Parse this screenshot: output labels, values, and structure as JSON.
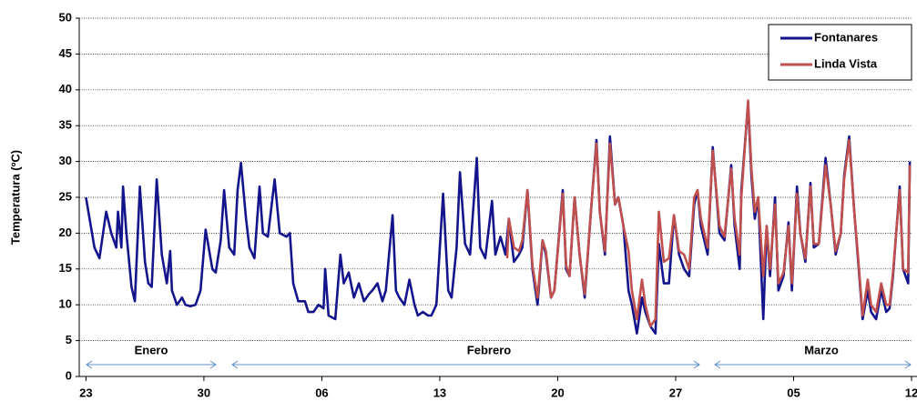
{
  "chart_data": {
    "type": "line",
    "y_label": "Temperatura (ºC)",
    "xlim": [
      -0.4,
      49
    ],
    "xticks": [
      {
        "value": 0,
        "label": "23"
      },
      {
        "value": 7,
        "label": "30"
      },
      {
        "value": 14,
        "label": "06"
      },
      {
        "value": 21,
        "label": "13"
      },
      {
        "value": 28,
        "label": "20"
      },
      {
        "value": 35,
        "label": "27"
      },
      {
        "value": 42,
        "label": "05"
      },
      {
        "value": 49,
        "label": "12"
      }
    ],
    "ylim": [
      0,
      50
    ],
    "yticks": [
      0,
      5,
      10,
      15,
      20,
      25,
      30,
      35,
      40,
      45,
      50
    ],
    "grid": true,
    "legend": "upper right",
    "annotations": [
      "Enero",
      "Febrero",
      "Marzo"
    ],
    "series": [
      {
        "name": "Fontanares",
        "color": "#14148c",
        "x": [
          0.0,
          0.5,
          0.8,
          1.2,
          1.5,
          1.8,
          1.9,
          2.1,
          2.2,
          2.4,
          2.7,
          2.9,
          3.2,
          3.5,
          3.7,
          3.9,
          4.2,
          4.5,
          4.8,
          5.0,
          5.1,
          5.4,
          5.7,
          5.9,
          6.2,
          6.5,
          6.8,
          7.1,
          7.5,
          7.7,
          8.0,
          8.2,
          8.5,
          8.8,
          9.0,
          9.2,
          9.5,
          9.7,
          10.0,
          10.3,
          10.5,
          10.8,
          11.2,
          11.5,
          11.9,
          12.1,
          12.3,
          12.6,
          13.0,
          13.2,
          13.5,
          13.8,
          14.1,
          14.2,
          14.4,
          14.8,
          15.1,
          15.3,
          15.6,
          15.9,
          16.2,
          16.5,
          16.8,
          17.0,
          17.3,
          17.6,
          17.8,
          18.2,
          18.4,
          18.6,
          18.9,
          19.2,
          19.5,
          19.7,
          20.0,
          20.3,
          20.5,
          20.8,
          21.2,
          21.5,
          21.7,
          22.0,
          22.2,
          22.5,
          22.8,
          23.2,
          23.4,
          23.7,
          24.1,
          24.3,
          24.6,
          24.9,
          25.1,
          25.4,
          25.7,
          25.9,
          26.2,
          26.5,
          26.8,
          27.1,
          27.3,
          27.6,
          27.8,
          28.3,
          28.5,
          28.7,
          29.0,
          29.3,
          29.6,
          30.0,
          30.3,
          30.5,
          30.8,
          31.1,
          31.4,
          31.6,
          31.9,
          32.2,
          32.4,
          32.7,
          33.0,
          33.2,
          33.5,
          33.8,
          34.0,
          34.3,
          34.6,
          34.9,
          35.2,
          35.5,
          35.8,
          36.1,
          36.3,
          36.5,
          36.9,
          37.2,
          37.6,
          37.9,
          38.3,
          38.5,
          38.8,
          38.9,
          39.3,
          39.5,
          39.7,
          39.9,
          40.2,
          40.4,
          40.6,
          40.9,
          41.1,
          41.4,
          41.7,
          41.9,
          42.2,
          42.4,
          42.7,
          43.0,
          43.2,
          43.5,
          43.9,
          44.2,
          44.5,
          44.8,
          45.0,
          45.3,
          45.6,
          45.8,
          46.1,
          46.4,
          46.6,
          46.9,
          47.2,
          47.5,
          47.7,
          47.9,
          48.3,
          48.5,
          48.8,
          48.9
        ],
        "values": [
          25,
          18,
          16.5,
          23,
          20,
          18,
          23,
          18,
          26.5,
          20,
          12.5,
          10.5,
          26.5,
          16,
          13,
          12.5,
          27.5,
          17,
          13,
          17.5,
          12,
          10,
          11,
          10,
          9.8,
          10,
          12,
          20.5,
          15,
          14.5,
          19,
          26,
          18,
          17,
          26,
          29.8,
          22,
          18,
          16.5,
          26.5,
          20,
          19.5,
          27.5,
          20,
          19.5,
          20,
          13,
          10.5,
          10.5,
          9,
          9,
          10,
          9.5,
          15,
          8.5,
          8,
          17,
          13,
          14.5,
          11,
          13,
          10.5,
          11.5,
          12,
          13,
          10.5,
          12,
          22.5,
          12,
          11,
          10,
          13.5,
          10,
          8.5,
          9,
          8.5,
          8.5,
          10,
          25.5,
          12,
          11,
          18,
          28.5,
          18.5,
          17,
          30.5,
          18,
          16.5,
          24.5,
          17,
          19.5,
          17,
          22,
          16,
          17,
          18,
          26,
          15,
          10,
          19,
          17,
          11,
          12,
          26,
          15,
          14,
          25,
          17,
          11,
          24,
          33,
          23,
          17,
          33.5,
          24,
          25,
          21,
          12,
          10,
          6,
          11,
          9,
          7,
          6,
          18.5,
          13,
          13,
          22.5,
          17,
          15,
          14,
          24,
          26,
          21,
          17,
          32,
          20,
          19,
          29.5,
          21,
          15,
          26,
          38,
          28,
          22,
          25,
          8,
          21,
          14,
          25,
          12,
          14,
          21.5,
          12,
          26.5,
          20,
          16,
          27,
          18,
          18.5,
          30.5,
          24,
          17,
          20,
          28,
          33.5,
          23,
          17,
          8,
          12,
          9,
          8,
          12,
          9,
          9.5,
          14,
          26.5,
          15,
          13,
          30
        ]
      },
      {
        "name": "Linda Vista",
        "color": "#c0504d",
        "x": [
          25.0,
          25.1,
          25.4,
          25.7,
          25.9,
          26.2,
          26.5,
          26.8,
          27.1,
          27.3,
          27.6,
          27.8,
          28.3,
          28.5,
          28.7,
          29.0,
          29.3,
          29.6,
          30.0,
          30.3,
          30.5,
          30.8,
          31.1,
          31.4,
          31.6,
          31.9,
          32.2,
          32.4,
          32.7,
          33.0,
          33.2,
          33.5,
          33.8,
          34.0,
          34.3,
          34.6,
          34.9,
          35.2,
          35.5,
          35.8,
          36.1,
          36.3,
          36.5,
          36.9,
          37.2,
          37.6,
          37.9,
          38.3,
          38.5,
          38.8,
          38.9,
          39.3,
          39.5,
          39.7,
          39.9,
          40.2,
          40.4,
          40.6,
          40.9,
          41.1,
          41.4,
          41.7,
          41.9,
          42.2,
          42.4,
          42.7,
          43.0,
          43.2,
          43.5,
          43.9,
          44.2,
          44.5,
          44.8,
          45.0,
          45.3,
          45.6,
          45.8,
          46.1,
          46.4,
          46.6,
          46.9,
          47.2,
          47.5,
          47.7,
          47.9,
          48.3,
          48.5,
          48.8,
          48.9
        ],
        "values": [
          16.5,
          22,
          18,
          17.5,
          19,
          26,
          15.5,
          11,
          19,
          17.5,
          11,
          12,
          25.5,
          15.5,
          14,
          25,
          17,
          11.5,
          24,
          32.5,
          23,
          17.5,
          32.5,
          24,
          25,
          21,
          17.5,
          12,
          8,
          13.5,
          10,
          7,
          8,
          23,
          16,
          16.5,
          22.5,
          17.5,
          17,
          15,
          25,
          26,
          22,
          18,
          31.5,
          21,
          19.5,
          29,
          22,
          17,
          25,
          38.5,
          29,
          23,
          25,
          14,
          21,
          15,
          24,
          13,
          14.5,
          21,
          13,
          25.5,
          20,
          16.5,
          26.5,
          18.5,
          18.5,
          29.5,
          24,
          17.5,
          20,
          27.5,
          33,
          23,
          17.5,
          8.5,
          13.5,
          10,
          9,
          13,
          10,
          10,
          14.5,
          26,
          15,
          14.5,
          29.5
        ]
      }
    ]
  }
}
